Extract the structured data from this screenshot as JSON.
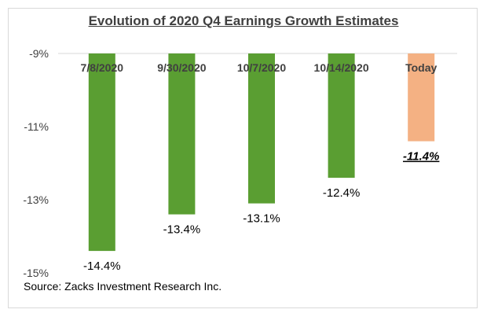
{
  "chart_data": {
    "type": "bar",
    "title": "Evolution of 2020 Q4 Earnings Growth Estimates",
    "categories": [
      "7/8/2020",
      "9/30/2020",
      "10/7/2020",
      "10/14/2020",
      "Today"
    ],
    "values": [
      -14.4,
      -13.4,
      -13.1,
      -12.4,
      -11.4
    ],
    "data_labels": [
      "-14.4%",
      "-13.4%",
      "-13.1%",
      "-12.4%",
      "-11.4%"
    ],
    "y_ticks": [
      -9,
      -11,
      -13,
      -15
    ],
    "y_tick_labels": [
      "-9%",
      "-11%",
      "-13%",
      "-15%"
    ],
    "ylim": [
      -15,
      -9
    ],
    "xlabel": "",
    "ylabel": "",
    "grid": false,
    "bar_colors": [
      "#5a9e32",
      "#5a9e32",
      "#5a9e32",
      "#5a9e32",
      "#f4b183"
    ],
    "highlight_index": 4
  },
  "source": "Source: Zacks Investment Research Inc."
}
